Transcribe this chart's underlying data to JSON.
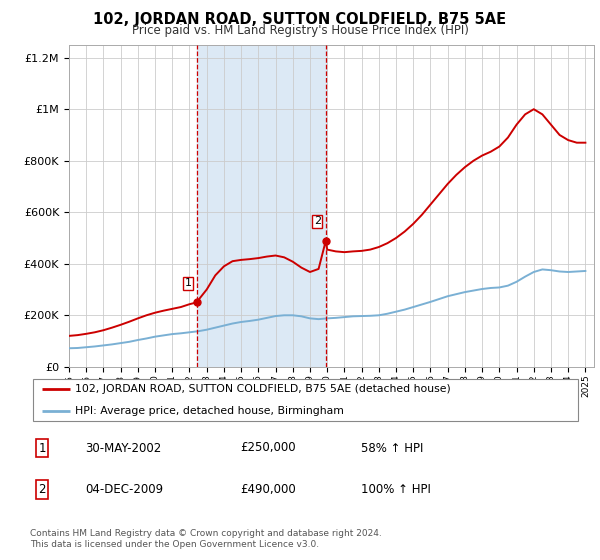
{
  "title": "102, JORDAN ROAD, SUTTON COLDFIELD, B75 5AE",
  "subtitle": "Price paid vs. HM Land Registry's House Price Index (HPI)",
  "bg_color": "#ffffff",
  "plot_bg_color": "#ffffff",
  "shade_color": "#dce9f5",
  "grid_color": "#cccccc",
  "red_color": "#cc0000",
  "blue_color": "#7ab0d4",
  "transaction1": {
    "date": "30-MAY-2002",
    "price": 250000,
    "label": "1",
    "year": 2002.42
  },
  "transaction2": {
    "date": "04-DEC-2009",
    "price": 490000,
    "label": "2",
    "year": 2009.92
  },
  "legend1": "102, JORDAN ROAD, SUTTON COLDFIELD, B75 5AE (detached house)",
  "legend2": "HPI: Average price, detached house, Birmingham",
  "footer1": "Contains HM Land Registry data © Crown copyright and database right 2024.",
  "footer2": "This data is licensed under the Open Government Licence v3.0.",
  "table_rows": [
    {
      "num": "1",
      "date": "30-MAY-2002",
      "price": "£250,000",
      "change": "58% ↑ HPI"
    },
    {
      "num": "2",
      "date": "04-DEC-2009",
      "price": "£490,000",
      "change": "100% ↑ HPI"
    }
  ],
  "xmin": 1995,
  "xmax": 2025.5,
  "ymin": 0,
  "ymax": 1250000,
  "shade_xmin": 2002.42,
  "shade_xmax": 2009.92,
  "hpi_years": [
    1995.0,
    1995.5,
    1996.0,
    1996.5,
    1997.0,
    1997.5,
    1998.0,
    1998.5,
    1999.0,
    1999.5,
    2000.0,
    2000.5,
    2001.0,
    2001.5,
    2002.0,
    2002.5,
    2003.0,
    2003.5,
    2004.0,
    2004.5,
    2005.0,
    2005.5,
    2006.0,
    2006.5,
    2007.0,
    2007.5,
    2008.0,
    2008.5,
    2009.0,
    2009.5,
    2010.0,
    2010.5,
    2011.0,
    2011.5,
    2012.0,
    2012.5,
    2013.0,
    2013.5,
    2014.0,
    2014.5,
    2015.0,
    2015.5,
    2016.0,
    2016.5,
    2017.0,
    2017.5,
    2018.0,
    2018.5,
    2019.0,
    2019.5,
    2020.0,
    2020.5,
    2021.0,
    2021.5,
    2022.0,
    2022.5,
    2023.0,
    2023.5,
    2024.0,
    2024.5,
    2025.0
  ],
  "hpi_values": [
    72000,
    73000,
    76000,
    79000,
    83000,
    87000,
    92000,
    97000,
    104000,
    110000,
    117000,
    122000,
    127000,
    130000,
    134000,
    138000,
    144000,
    152000,
    160000,
    168000,
    174000,
    178000,
    183000,
    190000,
    197000,
    200000,
    200000,
    196000,
    188000,
    185000,
    188000,
    190000,
    193000,
    196000,
    197000,
    198000,
    200000,
    206000,
    214000,
    222000,
    232000,
    242000,
    252000,
    263000,
    274000,
    282000,
    290000,
    296000,
    302000,
    306000,
    308000,
    315000,
    330000,
    350000,
    368000,
    378000,
    375000,
    370000,
    368000,
    370000,
    372000
  ],
  "house_years": [
    1995.0,
    1995.5,
    1996.0,
    1996.5,
    1997.0,
    1997.5,
    1998.0,
    1998.5,
    1999.0,
    1999.5,
    2000.0,
    2000.5,
    2001.0,
    2001.5,
    2002.0,
    2002.42,
    2002.5,
    2003.0,
    2003.5,
    2004.0,
    2004.5,
    2005.0,
    2005.5,
    2006.0,
    2006.5,
    2007.0,
    2007.5,
    2008.0,
    2008.5,
    2009.0,
    2009.5,
    2009.92,
    2010.0,
    2010.5,
    2011.0,
    2011.5,
    2012.0,
    2012.5,
    2013.0,
    2013.5,
    2014.0,
    2014.5,
    2015.0,
    2015.5,
    2016.0,
    2016.5,
    2017.0,
    2017.5,
    2018.0,
    2018.5,
    2019.0,
    2019.5,
    2020.0,
    2020.5,
    2021.0,
    2021.5,
    2022.0,
    2022.5,
    2023.0,
    2023.5,
    2024.0,
    2024.5,
    2025.0
  ],
  "house_values": [
    120000,
    123000,
    128000,
    134000,
    142000,
    152000,
    163000,
    175000,
    188000,
    200000,
    210000,
    218000,
    225000,
    232000,
    243000,
    250000,
    258000,
    300000,
    355000,
    390000,
    410000,
    415000,
    418000,
    422000,
    428000,
    432000,
    425000,
    408000,
    385000,
    368000,
    380000,
    490000,
    455000,
    448000,
    445000,
    448000,
    450000,
    455000,
    465000,
    480000,
    500000,
    525000,
    555000,
    590000,
    630000,
    670000,
    710000,
    745000,
    775000,
    800000,
    820000,
    835000,
    855000,
    890000,
    940000,
    980000,
    1000000,
    980000,
    940000,
    900000,
    880000,
    870000,
    870000
  ]
}
